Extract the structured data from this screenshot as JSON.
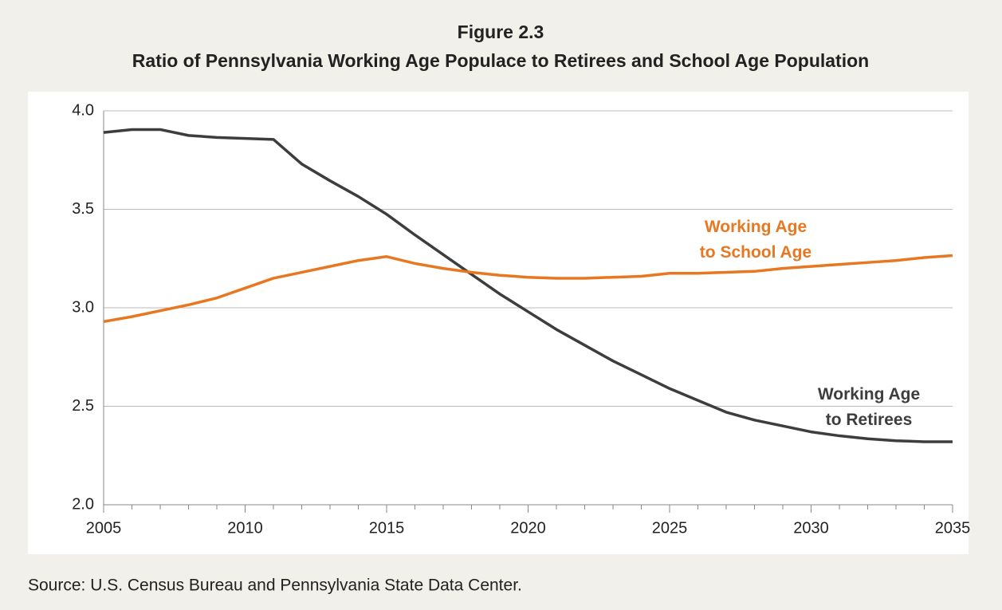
{
  "chart_data": {
    "type": "line",
    "title": "Figure 2.3",
    "subtitle": "Ratio of Pennsylvania Working Age Populace to Retirees and School Age Population",
    "source": "Source: U.S. Census Bureau and Pennsylvania State Data Center.",
    "x": [
      2005,
      2006,
      2007,
      2008,
      2009,
      2010,
      2011,
      2012,
      2013,
      2014,
      2015,
      2016,
      2017,
      2018,
      2019,
      2020,
      2021,
      2022,
      2023,
      2024,
      2025,
      2026,
      2027,
      2028,
      2029,
      2030,
      2031,
      2032,
      2033,
      2034,
      2035
    ],
    "series": [
      {
        "name": [
          "Working Age",
          "to Retirees"
        ],
        "color": "#3d3d3d",
        "values": [
          3.89,
          3.905,
          3.905,
          3.875,
          3.865,
          3.86,
          3.855,
          3.73,
          3.645,
          3.565,
          3.475,
          3.37,
          3.27,
          3.17,
          3.07,
          2.98,
          2.89,
          2.81,
          2.73,
          2.66,
          2.59,
          2.53,
          2.47,
          2.43,
          2.4,
          2.37,
          2.35,
          2.335,
          2.325,
          2.32,
          2.32
        ]
      },
      {
        "name": [
          "Working Age",
          "to School Age"
        ],
        "color": "#e87722",
        "values": [
          2.93,
          2.955,
          2.985,
          3.015,
          3.05,
          3.1,
          3.15,
          3.18,
          3.21,
          3.24,
          3.26,
          3.225,
          3.2,
          3.18,
          3.165,
          3.155,
          3.15,
          3.15,
          3.155,
          3.16,
          3.175,
          3.175,
          3.18,
          3.185,
          3.2,
          3.21,
          3.22,
          3.23,
          3.24,
          3.255,
          3.265
        ]
      }
    ],
    "xlim": [
      2005,
      2035
    ],
    "xticks": [
      2005,
      2010,
      2015,
      2020,
      2025,
      2030,
      2035
    ],
    "ylim": [
      2,
      4
    ],
    "yticks": [
      {
        "value": 2,
        "label": "2.0"
      },
      {
        "value": 2.5,
        "label": "2.5"
      },
      {
        "value": 3,
        "label": "3.0"
      },
      {
        "value": 3.5,
        "label": "3.5"
      },
      {
        "value": 4,
        "label": "4.0"
      }
    ],
    "grid": true
  }
}
